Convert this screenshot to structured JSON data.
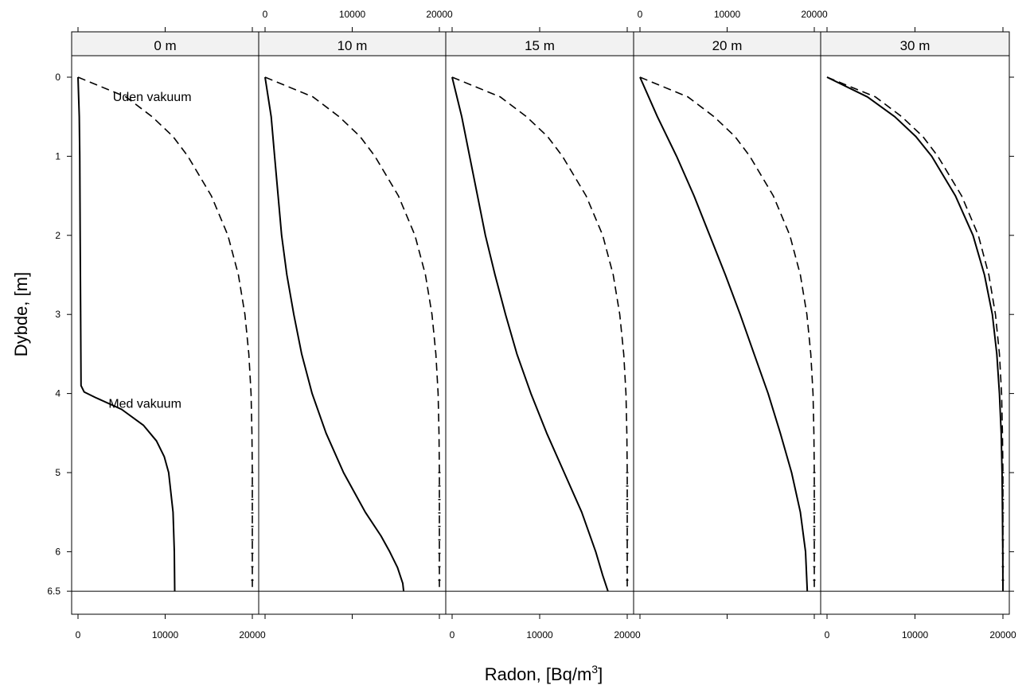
{
  "chart_data": {
    "type": "line",
    "xlabel": "Radon, [Bq/m",
    "xlabel_sup": "3",
    "xlabel_end": "]",
    "ylabel": "Dybde, [m]",
    "x_range": [
      0,
      20000
    ],
    "y_range_reversed": [
      0,
      6.5
    ],
    "x_ticks": [
      0,
      10000,
      20000
    ],
    "x_tick_labels": [
      "0",
      "10000",
      "20000"
    ],
    "y_ticks": [
      0,
      1,
      2,
      3,
      4,
      5,
      6,
      6.5
    ],
    "y_tick_labels": [
      "0",
      "1",
      "2",
      "3",
      "4",
      "5",
      "6",
      "6.5"
    ],
    "x_tick_labels_bottom_panels": [
      0,
      2,
      4
    ],
    "x_tick_labels_top_panels": [
      1,
      3
    ],
    "legend": "none (inline annotations in first panel)",
    "annotations": [
      {
        "text": "Uden vakuum",
        "panel": 0,
        "x": 4000,
        "y": 0.25
      },
      {
        "text": "Med vakuum",
        "panel": 0,
        "x": 3500,
        "y": 4.13
      }
    ],
    "panels": [
      {
        "label": "0 m",
        "series": [
          {
            "style": "dashed",
            "depth": [
              0,
              0.25,
              0.5,
              0.75,
              1,
              1.5,
              2,
              2.5,
              3,
              3.5,
              4,
              4.5,
              5,
              5.5,
              6,
              6.5
            ],
            "radon": [
              0,
              5500,
              8500,
              10900,
              12600,
              15300,
              17200,
              18400,
              19150,
              19600,
              19850,
              19950,
              20000,
              20000,
              20000,
              20000
            ]
          },
          {
            "style": "solid",
            "depth": [
              0,
              0.5,
              1,
              2,
              3,
              3.9,
              3.98,
              4.05,
              4.2,
              4.4,
              4.6,
              4.8,
              5,
              5.5,
              6,
              6.5
            ],
            "radon": [
              0,
              150,
              200,
              250,
              300,
              350,
              700,
              2000,
              5000,
              7500,
              9000,
              9900,
              10400,
              10900,
              11050,
              11100
            ]
          }
        ]
      },
      {
        "label": "10 m",
        "series": [
          {
            "style": "dashed",
            "depth": [
              0,
              0.25,
              0.5,
              0.75,
              1,
              1.5,
              2,
              2.5,
              3,
              3.5,
              4,
              4.5,
              5,
              5.5,
              6,
              6.5
            ],
            "radon": [
              0,
              5500,
              8500,
              10900,
              12600,
              15300,
              17200,
              18400,
              19150,
              19600,
              19850,
              19950,
              20000,
              20000,
              20000,
              20000
            ]
          },
          {
            "style": "solid",
            "depth": [
              0,
              0.5,
              1,
              1.5,
              2,
              2.5,
              3,
              3.5,
              4,
              4.5,
              5,
              5.5,
              5.8,
              6,
              6.2,
              6.4,
              6.5
            ],
            "radon": [
              0,
              700,
              1100,
              1500,
              1900,
              2500,
              3300,
              4200,
              5400,
              7000,
              9000,
              11500,
              13300,
              14300,
              15200,
              15800,
              15900
            ]
          }
        ]
      },
      {
        "label": "15 m",
        "series": [
          {
            "style": "dashed",
            "depth": [
              0,
              0.25,
              0.5,
              0.75,
              1,
              1.5,
              2,
              2.5,
              3,
              3.5,
              4,
              4.5,
              5,
              5.5,
              6,
              6.5
            ],
            "radon": [
              0,
              5500,
              8500,
              10900,
              12600,
              15300,
              17200,
              18400,
              19150,
              19600,
              19850,
              19950,
              20000,
              20000,
              20000,
              20000
            ]
          },
          {
            "style": "solid",
            "depth": [
              0,
              0.5,
              1,
              1.5,
              2,
              2.5,
              3,
              3.5,
              4,
              4.5,
              5,
              5.5,
              6,
              6.3,
              6.5
            ],
            "radon": [
              0,
              1100,
              2000,
              2900,
              3800,
              4900,
              6100,
              7400,
              9000,
              10800,
              12800,
              14800,
              16400,
              17200,
              17800
            ]
          }
        ]
      },
      {
        "label": "20 m",
        "series": [
          {
            "style": "dashed",
            "depth": [
              0,
              0.25,
              0.5,
              0.75,
              1,
              1.5,
              2,
              2.5,
              3,
              3.5,
              4,
              4.5,
              5,
              5.5,
              6,
              6.5
            ],
            "radon": [
              0,
              5500,
              8500,
              10900,
              12600,
              15300,
              17200,
              18400,
              19150,
              19600,
              19850,
              19950,
              20000,
              20000,
              20000,
              20000
            ]
          },
          {
            "style": "solid",
            "depth": [
              0,
              0.5,
              1,
              1.5,
              2,
              2.5,
              3,
              3.5,
              4,
              4.5,
              5,
              5.5,
              6,
              6.5
            ],
            "radon": [
              0,
              2000,
              4200,
              6200,
              8000,
              9800,
              11500,
              13100,
              14700,
              16100,
              17400,
              18400,
              19000,
              19200
            ]
          }
        ]
      },
      {
        "label": "30 m",
        "series": [
          {
            "style": "dashed",
            "depth": [
              0,
              0.25,
              0.5,
              0.75,
              1,
              1.5,
              2,
              2.5,
              3,
              3.5,
              4,
              4.5,
              5,
              5.5,
              6,
              6.5
            ],
            "radon": [
              0,
              5500,
              8500,
              10900,
              12600,
              15300,
              17200,
              18400,
              19150,
              19600,
              19850,
              19950,
              20000,
              20000,
              20000,
              20000
            ]
          },
          {
            "style": "solid",
            "depth": [
              0,
              0.25,
              0.5,
              0.75,
              1,
              1.5,
              2,
              2.5,
              3,
              3.5,
              4,
              4.5,
              5,
              5.5,
              6,
              6.5
            ],
            "radon": [
              0,
              4600,
              7700,
              10100,
              11900,
              14600,
              16600,
              17900,
              18800,
              19300,
              19600,
              19800,
              19900,
              19950,
              19980,
              20000
            ]
          }
        ]
      }
    ]
  }
}
